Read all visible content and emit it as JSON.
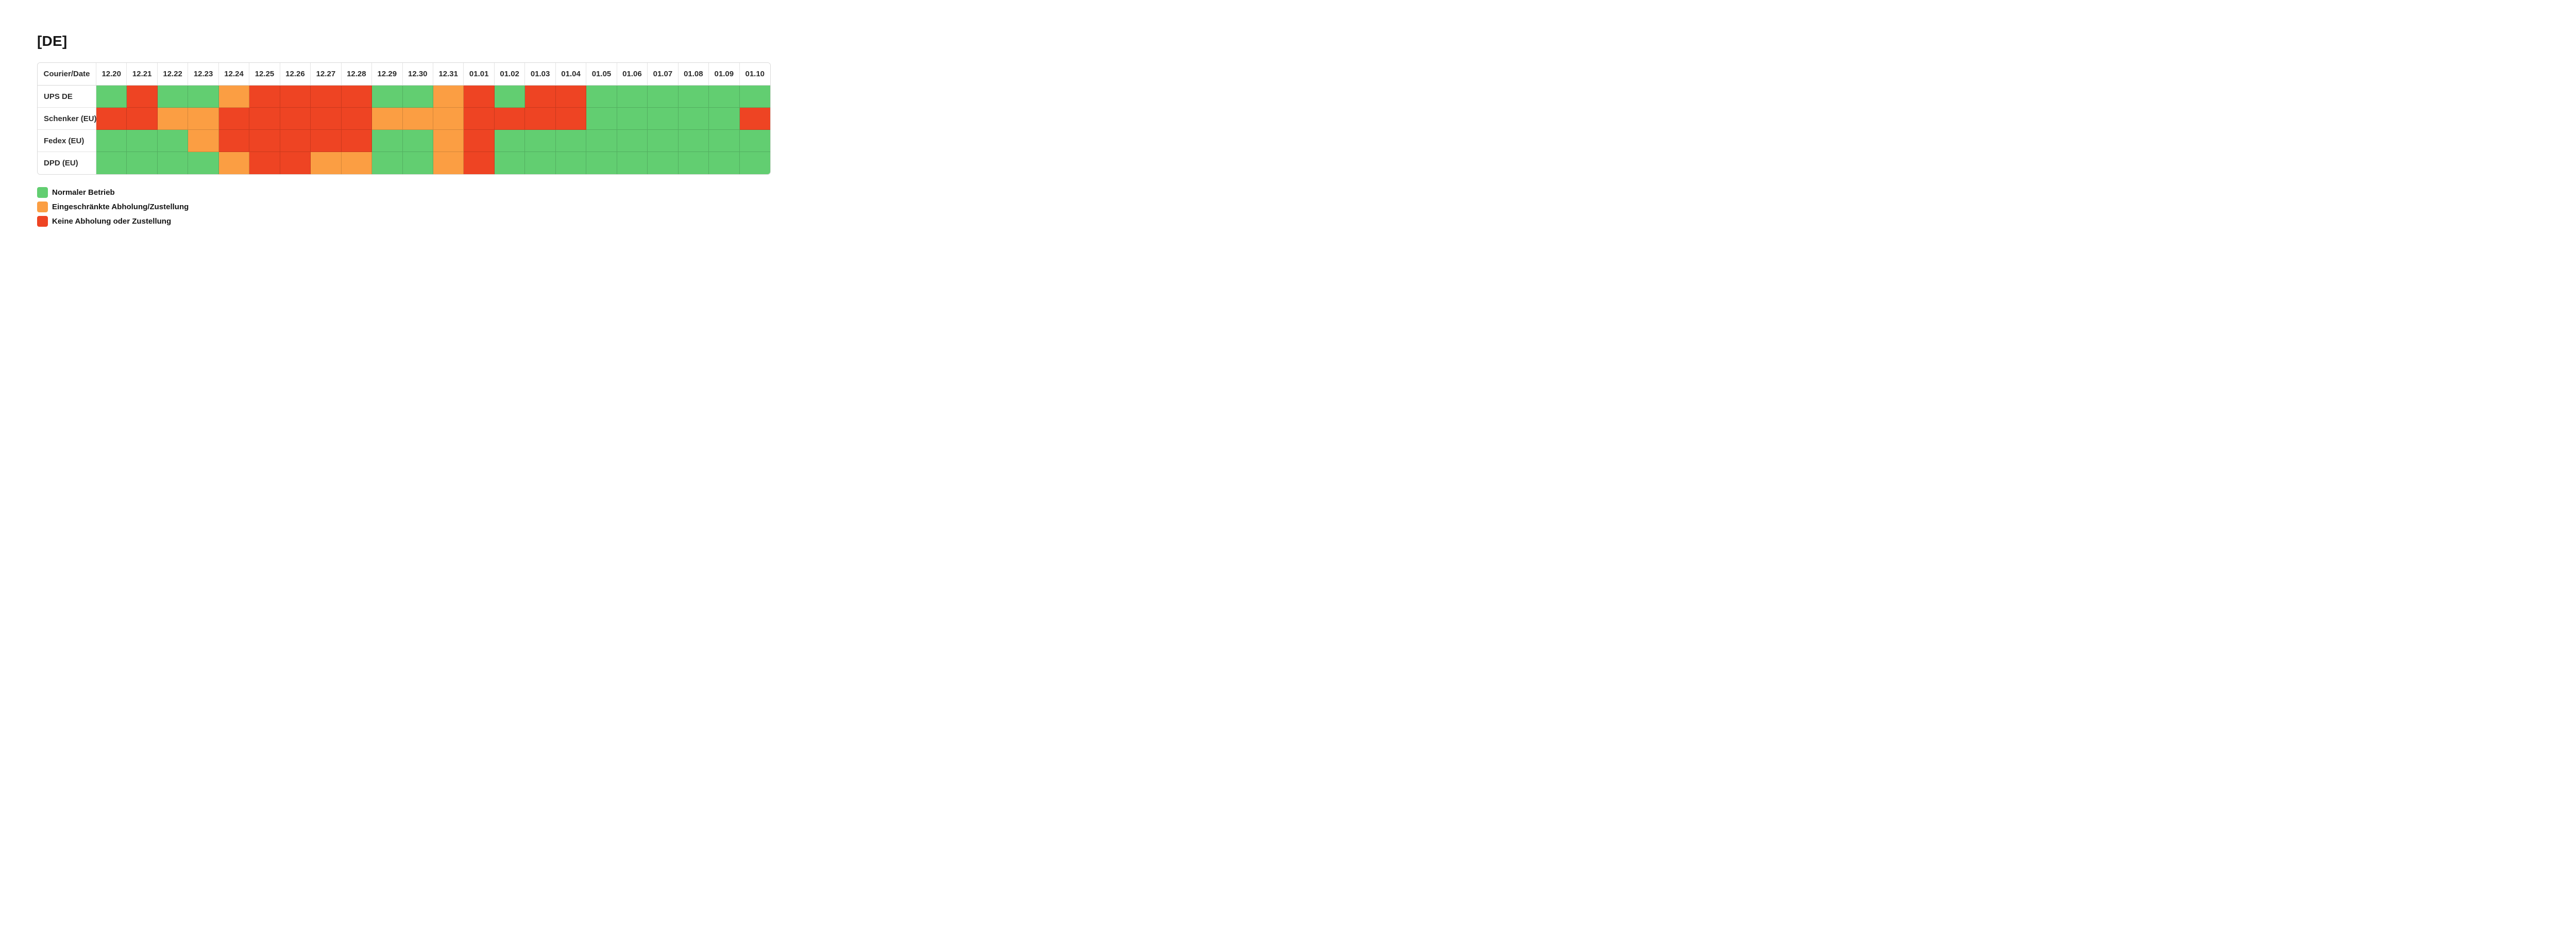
{
  "title": "[DE]",
  "table": {
    "corner_header": "Courier/Date",
    "dates": [
      "12.20",
      "12.21",
      "12.22",
      "12.23",
      "12.24",
      "12.25",
      "12.26",
      "12.27",
      "12.28",
      "12.29",
      "12.30",
      "12.31",
      "01.01",
      "01.02",
      "01.03",
      "01.04",
      "01.05",
      "01.06",
      "01.07",
      "01.08",
      "01.09",
      "01.10"
    ],
    "rows": [
      {
        "courier": "UPS DE",
        "statuses": [
          "normal",
          "none",
          "normal",
          "normal",
          "limited",
          "none",
          "none",
          "none",
          "none",
          "normal",
          "normal",
          "limited",
          "none",
          "normal",
          "none",
          "none",
          "normal",
          "normal",
          "normal",
          "normal",
          "normal",
          "normal"
        ]
      },
      {
        "courier": "Schenker (EU)",
        "statuses": [
          "none",
          "none",
          "limited",
          "limited",
          "none",
          "none",
          "none",
          "none",
          "none",
          "limited",
          "limited",
          "limited",
          "none",
          "none",
          "none",
          "none",
          "normal",
          "normal",
          "normal",
          "normal",
          "normal",
          "none"
        ]
      },
      {
        "courier": "Fedex (EU)",
        "statuses": [
          "normal",
          "normal",
          "normal",
          "limited",
          "none",
          "none",
          "none",
          "none",
          "none",
          "normal",
          "normal",
          "limited",
          "none",
          "normal",
          "normal",
          "normal",
          "normal",
          "normal",
          "normal",
          "normal",
          "normal",
          "normal"
        ]
      },
      {
        "courier": "DPD (EU)",
        "statuses": [
          "normal",
          "normal",
          "normal",
          "normal",
          "limited",
          "none",
          "none",
          "limited",
          "limited",
          "normal",
          "normal",
          "limited",
          "none",
          "normal",
          "normal",
          "normal",
          "normal",
          "normal",
          "normal",
          "normal",
          "normal",
          "normal"
        ]
      }
    ]
  },
  "legend": [
    {
      "status": "normal",
      "label": "Normaler Betrieb"
    },
    {
      "status": "limited",
      "label": "Eingeschränkte Abholung/Zustellung"
    },
    {
      "status": "none",
      "label": "Keine Abholung oder Zustellung"
    }
  ],
  "status_colors": {
    "normal": "#62ce71",
    "limited": "#fb9e43",
    "none": "#ee4423"
  }
}
